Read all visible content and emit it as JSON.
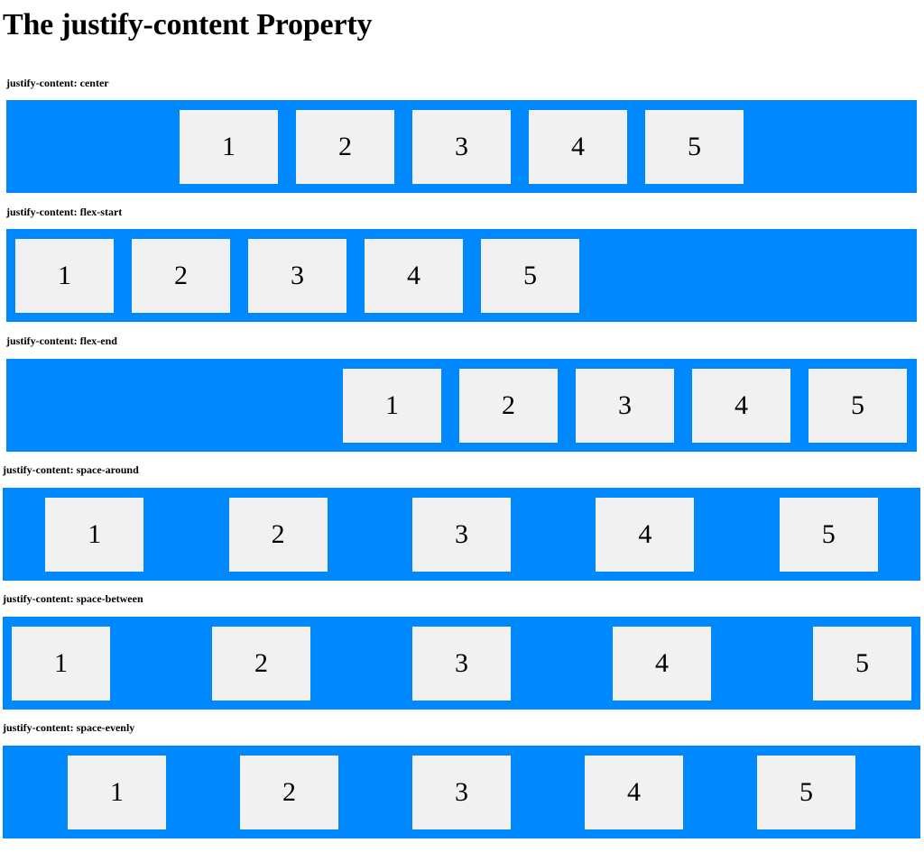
{
  "title": "The justify-content Property",
  "sections": [
    {
      "label": "justify-content: center",
      "items": [
        "1",
        "2",
        "3",
        "4",
        "5"
      ]
    },
    {
      "label": "justify-content: flex-start",
      "items": [
        "1",
        "2",
        "3",
        "4",
        "5"
      ]
    },
    {
      "label": "justify-content: flex-end",
      "items": [
        "1",
        "2",
        "3",
        "4",
        "5"
      ]
    },
    {
      "label": "justify-content: space-around",
      "items": [
        "1",
        "2",
        "3",
        "4",
        "5"
      ]
    },
    {
      "label": "justify-content: space-between",
      "items": [
        "1",
        "2",
        "3",
        "4",
        "5"
      ]
    },
    {
      "label": "justify-content: space-evenly",
      "items": [
        "1",
        "2",
        "3",
        "4",
        "5"
      ]
    }
  ],
  "colors": {
    "container": "#0088ff",
    "item": "#f1f1f1"
  }
}
